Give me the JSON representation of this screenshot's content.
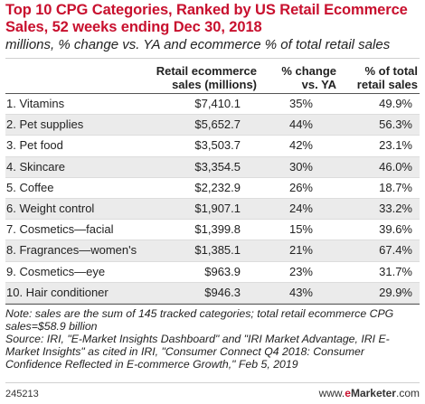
{
  "chart_data": {
    "type": "table",
    "title": "Top 10 CPG Categories, Ranked by US Retail Ecommerce Sales, 52 weeks ending Dec 30, 2018",
    "subtitle": "millions, % change vs. YA and ecommerce % of total retail sales",
    "columns": [
      "",
      "Retail ecommerce sales (millions)",
      "% change vs. YA",
      "% of total retail sales"
    ],
    "rows": [
      {
        "category": "1. Vitamins",
        "sales": "$7,410.1",
        "change": "35%",
        "pct": "49.9%"
      },
      {
        "category": "2. Pet supplies",
        "sales": "$5,652.7",
        "change": "44%",
        "pct": "56.3%"
      },
      {
        "category": "3. Pet food",
        "sales": "$3,503.7",
        "change": "42%",
        "pct": "23.1%"
      },
      {
        "category": "4. Skincare",
        "sales": "$3,354.5",
        "change": "30%",
        "pct": "46.0%"
      },
      {
        "category": "5. Coffee",
        "sales": "$2,232.9",
        "change": "26%",
        "pct": "18.7%"
      },
      {
        "category": "6. Weight control",
        "sales": "$1,907.1",
        "change": "24%",
        "pct": "33.2%"
      },
      {
        "category": "7. Cosmetics—facial",
        "sales": "$1,399.8",
        "change": "15%",
        "pct": "39.6%"
      },
      {
        "category": "8. Fragrances—women's",
        "sales": "$1,385.1",
        "change": "21%",
        "pct": "67.4%"
      },
      {
        "category": "9. Cosmetics—eye",
        "sales": "$963.9",
        "change": "23%",
        "pct": "31.7%"
      },
      {
        "category": "10. Hair conditioner",
        "sales": "$946.3",
        "change": "43%",
        "pct": "29.9%"
      }
    ]
  },
  "header": {
    "sales_line1": "Retail ecommerce",
    "sales_line2": "sales (millions)",
    "change_line1": "% change",
    "change_line2": "vs. YA",
    "pct_line1": "% of total",
    "pct_line2": "retail sales"
  },
  "notes": {
    "note": "Note: sales are the sum of 145 tracked categories; total retail ecommerce CPG sales=$58.9 billion",
    "source": "Source: IRI, \"E-Market Insights Dashboard\" and \"IRI Market Advantage, IRI E-Market Insights\" as cited in IRI, \"Consumer Connect Q4 2018: Consumer Confidence Reflected in E-commerce Growth,\" Feb 5, 2019"
  },
  "footer": {
    "chart_id": "245213",
    "brand_prefix": "www.",
    "brand_e": "e",
    "brand_name": "Marketer",
    "brand_suffix": ".com"
  },
  "colors": {
    "title": "#c8102e",
    "row_alt": "#ebebeb"
  }
}
